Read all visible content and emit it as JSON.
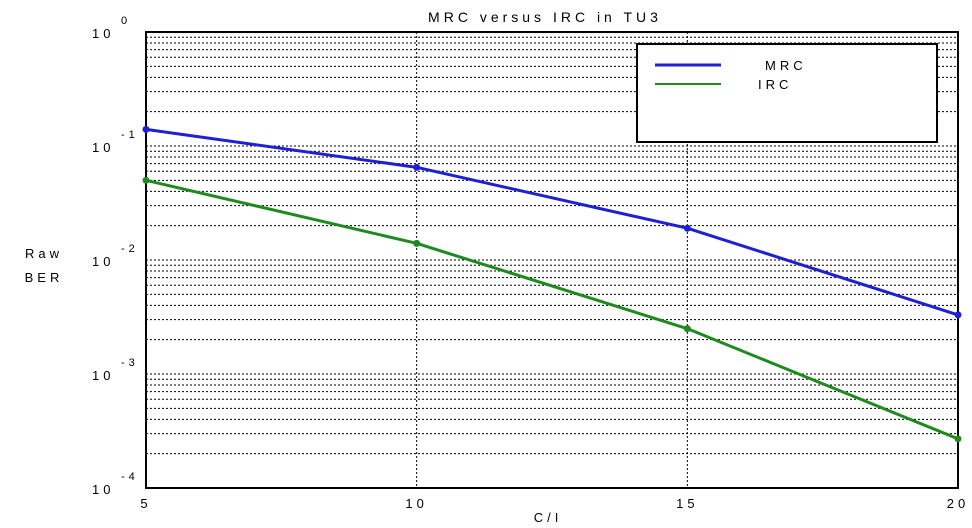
{
  "chart_data": {
    "type": "line",
    "title": "MRC versus IRC in TU3",
    "xlabel": "C/I",
    "ylabel_lines": [
      "Raw",
      "BER"
    ],
    "x": [
      5,
      10,
      15,
      20
    ],
    "xlim": [
      5,
      20
    ],
    "x_ticks": [
      "5",
      "10",
      "15",
      "20"
    ],
    "yscale": "log",
    "ylim": [
      0.0001,
      1
    ],
    "y_ticks": [
      {
        "base": "10",
        "exp": "0"
      },
      {
        "base": "10",
        "exp": "-1"
      },
      {
        "base": "10",
        "exp": "-2"
      },
      {
        "base": "10",
        "exp": "-3"
      },
      {
        "base": "10",
        "exp": "-4"
      }
    ],
    "grid": true,
    "legend_position": "top-right",
    "series": [
      {
        "name": "MRC",
        "color": "#1f1fd6",
        "values": [
          0.14,
          0.065,
          0.019,
          0.0033
        ]
      },
      {
        "name": "IRC",
        "color": "#1f8a1f",
        "values": [
          0.05,
          0.014,
          0.0025,
          0.00027
        ]
      }
    ]
  }
}
